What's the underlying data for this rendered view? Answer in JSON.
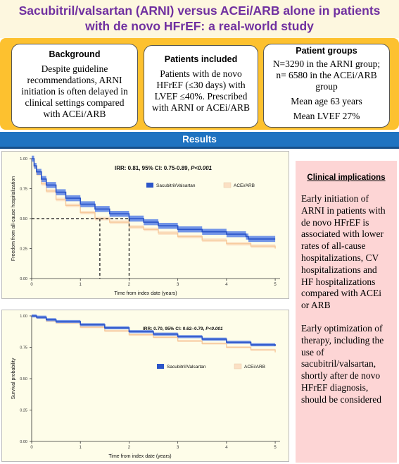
{
  "header": {
    "title_line1": "Sacubitril/valsartan (ARNI) versus ACEi/ARB alone in patients",
    "title_line2": "with de novo HFrEF: a real-world study"
  },
  "cards": {
    "background": {
      "heading": "Background",
      "body": "Despite guideline recommendations, ARNI initiation is often delayed in clinical settings compared with ACEi/ARB"
    },
    "patients": {
      "heading": "Patients included",
      "body": "Patients with de novo HFrEF (≤30 days) with LVEF ≤40%. Prescribed with ARNI or ACEi/ARB"
    },
    "groups": {
      "heading": "Patient groups",
      "line1": "N=3290  in the ARNI group; n= 6580 in the ACEi/ARB group",
      "line2": "Mean age 63 years",
      "line3": "Mean LVEF 27%"
    }
  },
  "results": {
    "label": "Results"
  },
  "clinical": {
    "heading": "Clinical implications",
    "para1": "Early initiation of ARNI in patients with de novo HFrEF is associated with lower rates of all-cause hospitalizations, CV hospitalizations and HF hospitalizations compared with ACEi or ARB",
    "para2": "Early optimization of therapy, including the use of sacubitril/valsartan, shortly after de novo HFrEF diagnosis, should be considered"
  },
  "colors": {
    "arni": "#2c55c8",
    "arni_band": "#5b83e6",
    "acei": "#f6c99a",
    "acei_band": "#fbe0c4",
    "accent": "#7030a0",
    "gold": "#fdc12f",
    "blue": "#1f73c1"
  },
  "chart_data": [
    {
      "type": "line",
      "title": "",
      "annotation_prefix": "IRR: 0.81, 95% CI: 0.75-0.89, ",
      "annotation_p": "P<0.001",
      "xlabel": "Time from index date (years)",
      "ylabel": "Freedom from all-cause hospitalization",
      "xlim": [
        0,
        5.1
      ],
      "ylim": [
        0,
        1
      ],
      "xticks": [
        0,
        1,
        2,
        3,
        4,
        5
      ],
      "yticks": [
        0,
        0.25,
        0.5,
        0.75,
        1
      ],
      "ytick_labels": [
        "0.00",
        "0.25",
        "0.50",
        "0.75",
        "1.00"
      ],
      "legend": [
        "Sacubitril/Valsartan",
        "ACEi/ARB"
      ],
      "legend_position": "top-right",
      "grid": false,
      "median_lines": [
        1.4,
        2.0
      ],
      "series": [
        {
          "name": "Sacubitril/Valsartan",
          "x": [
            0,
            0.05,
            0.1,
            0.2,
            0.3,
            0.5,
            0.7,
            1.0,
            1.3,
            1.6,
            2.0,
            2.3,
            2.6,
            3.0,
            3.5,
            4.0,
            4.4,
            4.45,
            5.0
          ],
          "y": [
            1.0,
            0.94,
            0.89,
            0.83,
            0.78,
            0.72,
            0.67,
            0.62,
            0.58,
            0.54,
            0.5,
            0.47,
            0.44,
            0.41,
            0.39,
            0.37,
            0.35,
            0.33,
            0.33
          ],
          "band": 0.025
        },
        {
          "name": "ACEi/ARB",
          "x": [
            0,
            0.05,
            0.1,
            0.2,
            0.3,
            0.5,
            0.7,
            1.0,
            1.3,
            1.6,
            2.0,
            2.3,
            2.6,
            3.0,
            3.5,
            4.0,
            4.5,
            5.0
          ],
          "y": [
            1.0,
            0.93,
            0.87,
            0.79,
            0.73,
            0.66,
            0.61,
            0.55,
            0.5,
            0.47,
            0.43,
            0.41,
            0.38,
            0.35,
            0.32,
            0.29,
            0.27,
            0.25
          ],
          "band": 0.015
        }
      ]
    },
    {
      "type": "line",
      "title": "",
      "annotation_prefix": "IRR: 0.70, 95% CI: 0.62–0.79, ",
      "annotation_p": "P<0.001",
      "xlabel": "Time from index date (years)",
      "ylabel": "Survival probability",
      "xlim": [
        0,
        5.1
      ],
      "ylim": [
        0,
        1
      ],
      "xticks": [
        0,
        1,
        2,
        3,
        4,
        5
      ],
      "yticks": [
        0,
        0.25,
        0.5,
        0.75,
        1
      ],
      "ytick_labels": [
        "0.00",
        "0.25",
        "0.50",
        "0.75",
        "1.00"
      ],
      "legend": [
        "Sacubitril/Valsartan",
        "ACEi/ARB"
      ],
      "legend_position": "right",
      "grid": false,
      "series": [
        {
          "name": "Sacubitril/Valsartan",
          "x": [
            0,
            0.1,
            0.3,
            0.5,
            1.0,
            1.5,
            2.0,
            2.5,
            3.0,
            3.5,
            4.0,
            4.5,
            5.0
          ],
          "y": [
            1.0,
            0.99,
            0.97,
            0.955,
            0.93,
            0.905,
            0.875,
            0.855,
            0.835,
            0.815,
            0.79,
            0.77,
            0.76
          ],
          "band": 0.012
        },
        {
          "name": "ACEi/ARB",
          "x": [
            0,
            0.1,
            0.3,
            0.5,
            1.0,
            1.5,
            2.0,
            2.5,
            3.0,
            3.5,
            4.0,
            4.5,
            5.0
          ],
          "y": [
            1.0,
            0.985,
            0.96,
            0.945,
            0.91,
            0.88,
            0.85,
            0.83,
            0.8,
            0.78,
            0.75,
            0.73,
            0.71
          ],
          "band": 0.008
        }
      ]
    }
  ]
}
